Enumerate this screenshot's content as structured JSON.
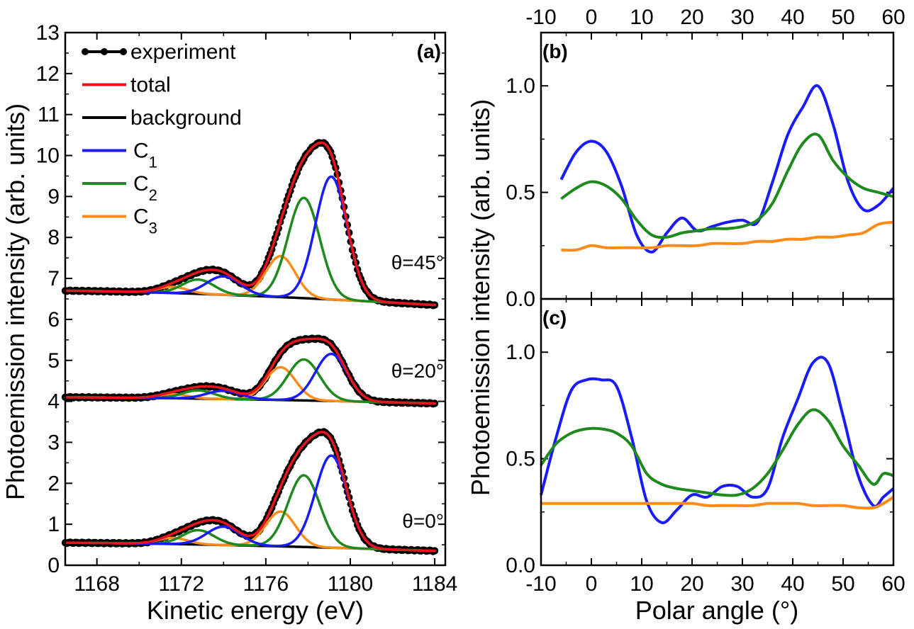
{
  "chart_data": [
    {
      "panel": "a",
      "type": "line",
      "title": "",
      "panel_label": "(a)",
      "xlabel": "Kinetic energy (eV)",
      "ylabel": "Photoemission intensity (arb. units)",
      "xlim": [
        1166.5,
        1184.5
      ],
      "ylim": [
        0,
        13
      ],
      "xticks": [
        1168,
        1172,
        1176,
        1180,
        1184
      ],
      "yticks": [
        0,
        1,
        2,
        3,
        4,
        5,
        6,
        7,
        8,
        9,
        10,
        11,
        12,
        13
      ],
      "legend": [
        {
          "label": "experiment",
          "color": "#000000",
          "marker": true
        },
        {
          "label": "total",
          "color": "#e8141b"
        },
        {
          "label": "background",
          "color": "#000000"
        },
        {
          "label": "C",
          "sub": "1",
          "color": "#1a1aff"
        },
        {
          "label": "C",
          "sub": "2",
          "color": "#1e8a1e"
        },
        {
          "label": "C",
          "sub": "3",
          "color": "#ff8c1a"
        }
      ],
      "colors": {
        "experiment": "#000000",
        "total": "#e8141b",
        "background": "#000000",
        "C1": "#1a1aff",
        "C2": "#1e8a1e",
        "C3": "#ff8c1a"
      },
      "peaks": {
        "C1": {
          "centers": [
            1174.0,
            1179.1
          ],
          "widths": [
            0.8,
            0.75
          ]
        },
        "C2": {
          "centers": [
            1172.8,
            1177.8
          ],
          "widths": [
            0.75,
            0.75
          ]
        },
        "C3": {
          "centers": [
            1171.6,
            1176.7
          ],
          "widths": [
            0.7,
            0.7
          ]
        }
      },
      "spectra": [
        {
          "label": "θ=45°",
          "bg_start": 6.7,
          "bg_end": 6.35,
          "C1": [
            0.45,
            3.0
          ],
          "C2": [
            0.35,
            2.45
          ],
          "C3": [
            0.15,
            1.0
          ]
        },
        {
          "label": "θ=20°",
          "bg_start": 4.1,
          "bg_end": 3.95,
          "C1": [
            0.2,
            1.15
          ],
          "C2": [
            0.2,
            1.0
          ],
          "C3": [
            0.1,
            0.8
          ]
        },
        {
          "label": "θ=0°",
          "bg_start": 0.55,
          "bg_end": 0.35,
          "C1": [
            0.45,
            2.25
          ],
          "C2": [
            0.35,
            1.75
          ],
          "C3": [
            0.15,
            0.85
          ]
        }
      ]
    },
    {
      "panel": "b",
      "type": "line",
      "panel_label": "(b)",
      "xlabel": "Polar angle (°)",
      "ylabel": "Photoemission intensity (arb. units)",
      "xlim": [
        -10,
        60
      ],
      "ylim": [
        0,
        1.25
      ],
      "xticks": [
        -10,
        0,
        10,
        20,
        30,
        40,
        50,
        60
      ],
      "yticks": [
        0.0,
        0.5,
        1.0
      ],
      "ytick_labels": [
        "0.0",
        "0.5",
        "1.0"
      ],
      "x": [
        -6,
        -3,
        0,
        3,
        6,
        9,
        12,
        15,
        18,
        21,
        24,
        27,
        30,
        33,
        36,
        39,
        42,
        45,
        48,
        51,
        54,
        57,
        60
      ],
      "series": [
        {
          "name": "C1",
          "color": "#1a1aff",
          "values": [
            0.56,
            0.69,
            0.74,
            0.69,
            0.53,
            0.3,
            0.22,
            0.31,
            0.38,
            0.32,
            0.34,
            0.36,
            0.37,
            0.36,
            0.55,
            0.77,
            0.9,
            1.0,
            0.82,
            0.55,
            0.42,
            0.44,
            0.52
          ]
        },
        {
          "name": "C2",
          "color": "#1e8a1e",
          "values": [
            0.47,
            0.52,
            0.55,
            0.53,
            0.47,
            0.37,
            0.3,
            0.29,
            0.31,
            0.32,
            0.33,
            0.33,
            0.34,
            0.37,
            0.45,
            0.6,
            0.73,
            0.77,
            0.65,
            0.57,
            0.52,
            0.5,
            0.48
          ]
        },
        {
          "name": "C3",
          "color": "#ff8c1a",
          "values": [
            0.23,
            0.23,
            0.25,
            0.24,
            0.24,
            0.24,
            0.24,
            0.25,
            0.25,
            0.25,
            0.26,
            0.26,
            0.26,
            0.27,
            0.27,
            0.28,
            0.28,
            0.29,
            0.29,
            0.3,
            0.31,
            0.35,
            0.36
          ]
        }
      ]
    },
    {
      "panel": "c",
      "type": "line",
      "panel_label": "(c)",
      "xlabel": "Polar angle (°)",
      "ylabel": "Photoemission intensity (arb. units)",
      "xlim": [
        -10,
        60
      ],
      "ylim": [
        0,
        1.25
      ],
      "xticks": [
        -10,
        0,
        10,
        20,
        30,
        40,
        50,
        60
      ],
      "yticks": [
        0.0,
        0.5,
        1.0
      ],
      "ytick_labels": [
        "0.0",
        "0.5",
        "1.0"
      ],
      "x": [
        -10,
        -7,
        -4,
        -1,
        2,
        5,
        8,
        11,
        14,
        17,
        20,
        23,
        26,
        29,
        32,
        35,
        38,
        41,
        44,
        47,
        50,
        53,
        56,
        58,
        60
      ],
      "series": [
        {
          "name": "C1",
          "color": "#1a1aff",
          "values": [
            0.33,
            0.6,
            0.82,
            0.87,
            0.87,
            0.84,
            0.6,
            0.3,
            0.2,
            0.26,
            0.33,
            0.32,
            0.37,
            0.37,
            0.32,
            0.36,
            0.6,
            0.78,
            0.95,
            0.95,
            0.7,
            0.42,
            0.28,
            0.32,
            0.36
          ]
        },
        {
          "name": "C2",
          "color": "#1e8a1e",
          "values": [
            0.47,
            0.57,
            0.62,
            0.64,
            0.64,
            0.62,
            0.56,
            0.43,
            0.38,
            0.36,
            0.35,
            0.34,
            0.33,
            0.33,
            0.36,
            0.43,
            0.54,
            0.66,
            0.73,
            0.68,
            0.56,
            0.47,
            0.38,
            0.43,
            0.42
          ]
        },
        {
          "name": "C3",
          "color": "#ff8c1a",
          "values": [
            0.29,
            0.29,
            0.29,
            0.29,
            0.29,
            0.29,
            0.29,
            0.29,
            0.29,
            0.29,
            0.29,
            0.28,
            0.28,
            0.28,
            0.28,
            0.29,
            0.29,
            0.29,
            0.28,
            0.28,
            0.28,
            0.27,
            0.27,
            0.29,
            0.32
          ]
        }
      ]
    }
  ],
  "secondary_top_axis": {
    "ticks": [
      -10,
      0,
      10,
      20,
      30,
      40,
      50,
      60
    ]
  }
}
